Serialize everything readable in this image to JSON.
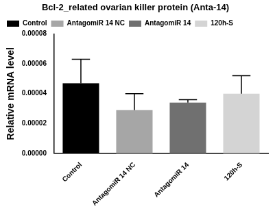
{
  "chart_data": {
    "type": "bar",
    "title": "Bcl-2_related ovarian killer protein (Anta-14)",
    "y_label": "Relative mRNA level",
    "categories": [
      "Control",
      "AntagomiR 14 NC",
      "AntagomiR 14",
      "120h-S"
    ],
    "values": [
      4.7e-05,
      2.9e-05,
      3.4e-05,
      4e-05
    ],
    "errors": [
      1.6e-05,
      1.1e-05,
      2e-06,
      1.2e-05
    ],
    "colors": [
      "#000000",
      "#a6a6a6",
      "#707070",
      "#d4d4d4"
    ],
    "ylim": [
      0,
      8e-05
    ],
    "yticks": [
      {
        "value": 0,
        "label": "0.00000"
      },
      {
        "value": 2e-05,
        "label": "0.00002"
      },
      {
        "value": 4e-05,
        "label": "0.00004"
      },
      {
        "value": 6e-05,
        "label": "0.00006"
      },
      {
        "value": 8e-05,
        "label": "0.00008"
      }
    ],
    "grid": false,
    "legend": "top-left"
  }
}
